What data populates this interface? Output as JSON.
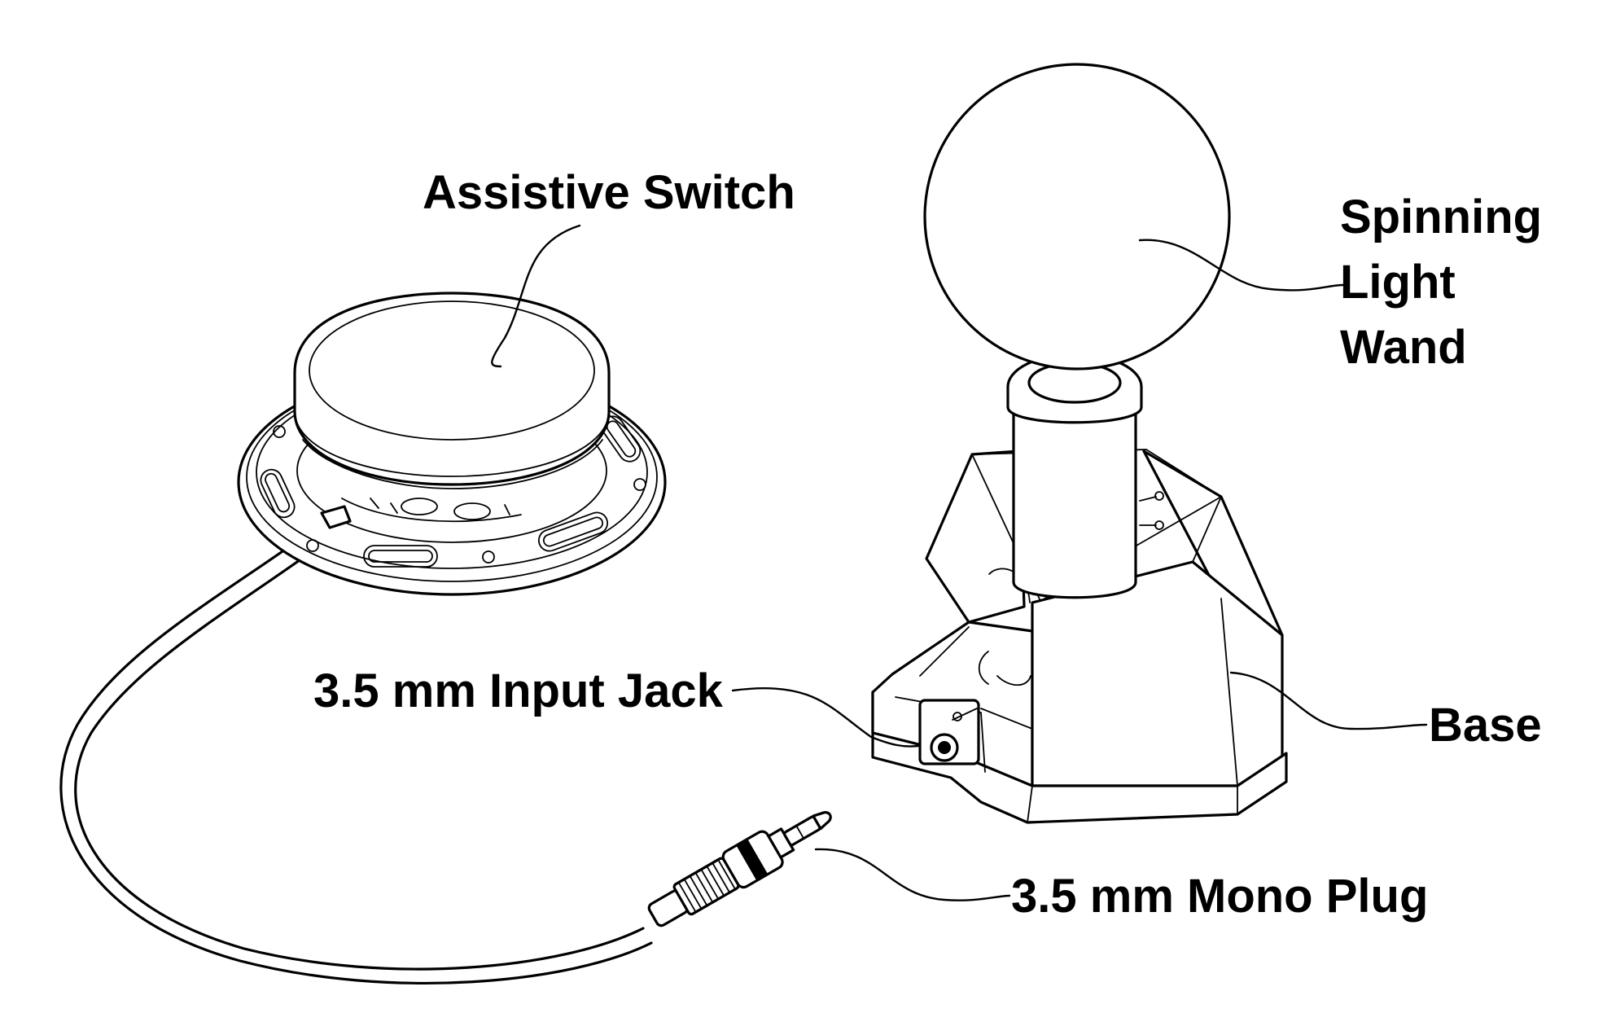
{
  "labels": {
    "assistive_switch": "Assistive Switch",
    "spinning_line1": "Spinning",
    "spinning_line2": "Light",
    "spinning_line3": "Wand",
    "input_jack": "3.5 mm Input Jack",
    "base": "Base",
    "mono_plug": "3.5 mm Mono Plug"
  },
  "colors": {
    "line": "#000000",
    "background": "#ffffff"
  }
}
